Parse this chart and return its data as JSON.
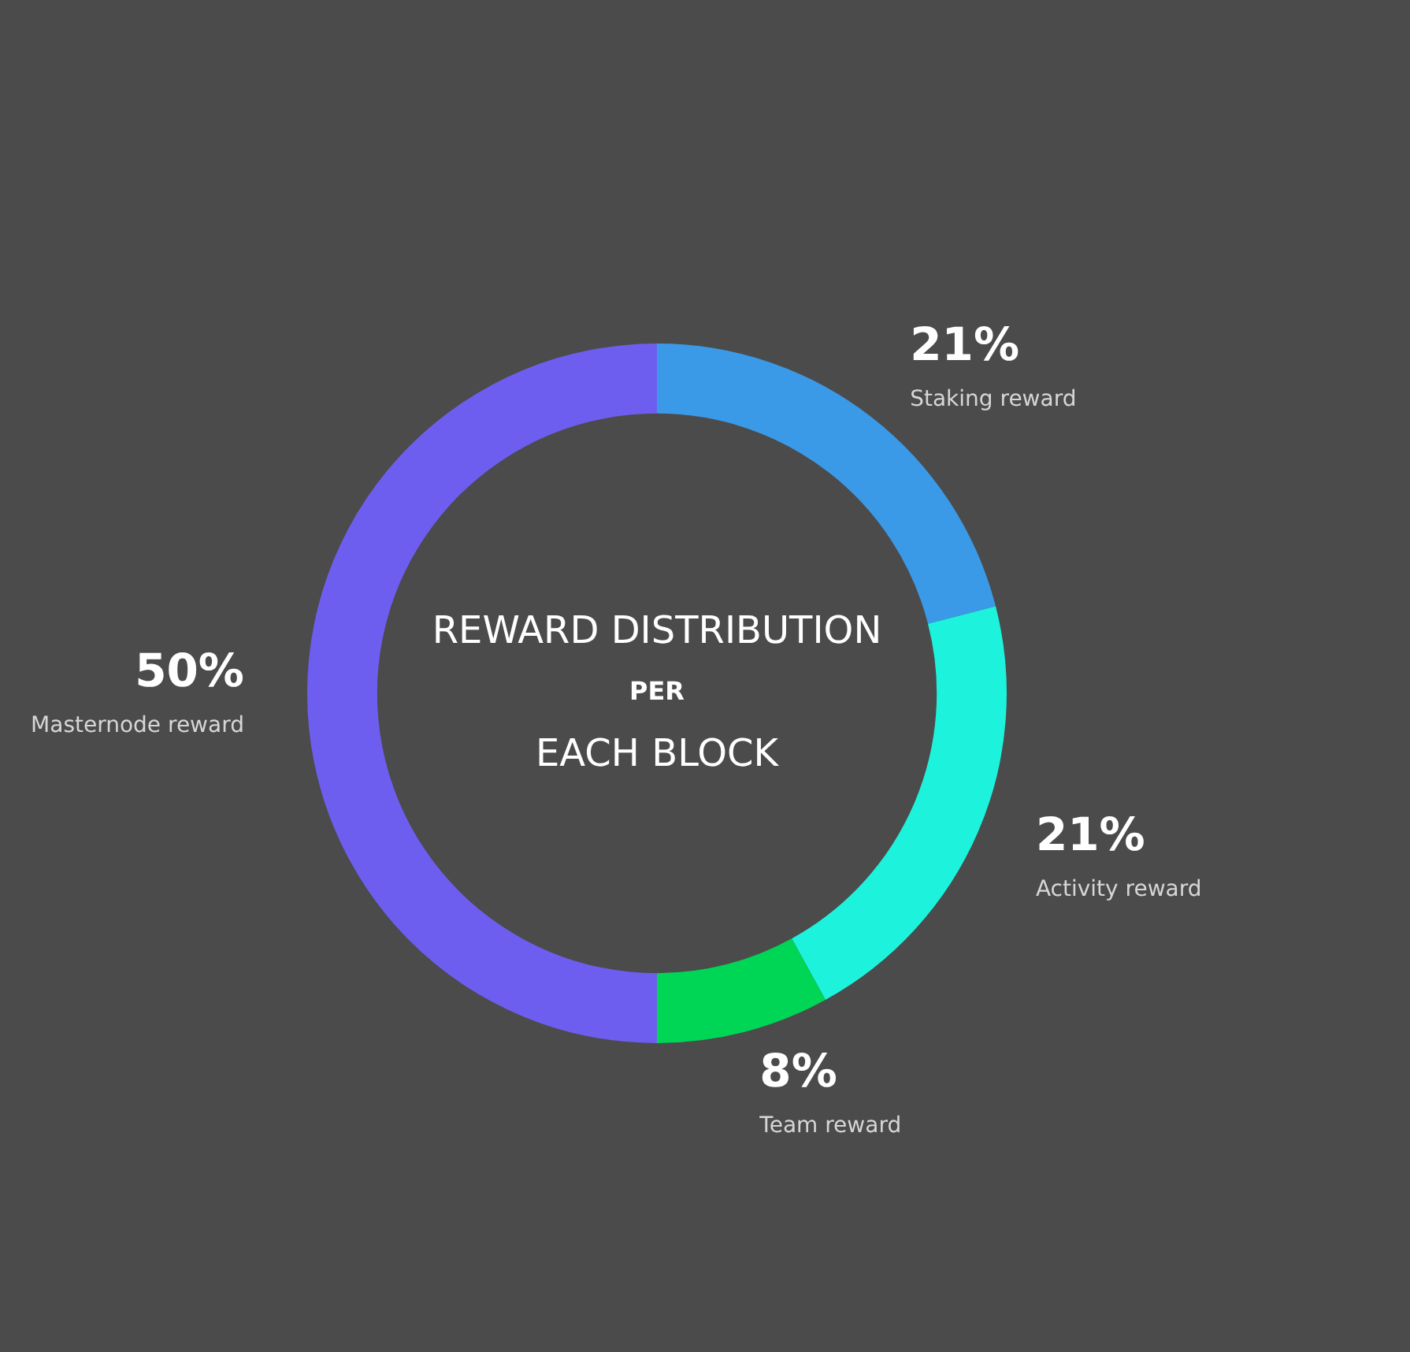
{
  "chart_data": {
    "type": "donut",
    "title": "REWARD DISTRIBUTION\nPER\nEACH BLOCK",
    "categories": [
      "Staking reward",
      "Activity reward",
      "Team reward",
      "Masternode reward"
    ],
    "values": [
      21,
      21,
      8,
      50
    ],
    "value_labels": [
      "21%",
      "21%",
      "8%",
      "50%"
    ],
    "colors": [
      "#3b9ae8",
      "#1df3dc",
      "#00d655",
      "#6e5ef0"
    ]
  }
}
